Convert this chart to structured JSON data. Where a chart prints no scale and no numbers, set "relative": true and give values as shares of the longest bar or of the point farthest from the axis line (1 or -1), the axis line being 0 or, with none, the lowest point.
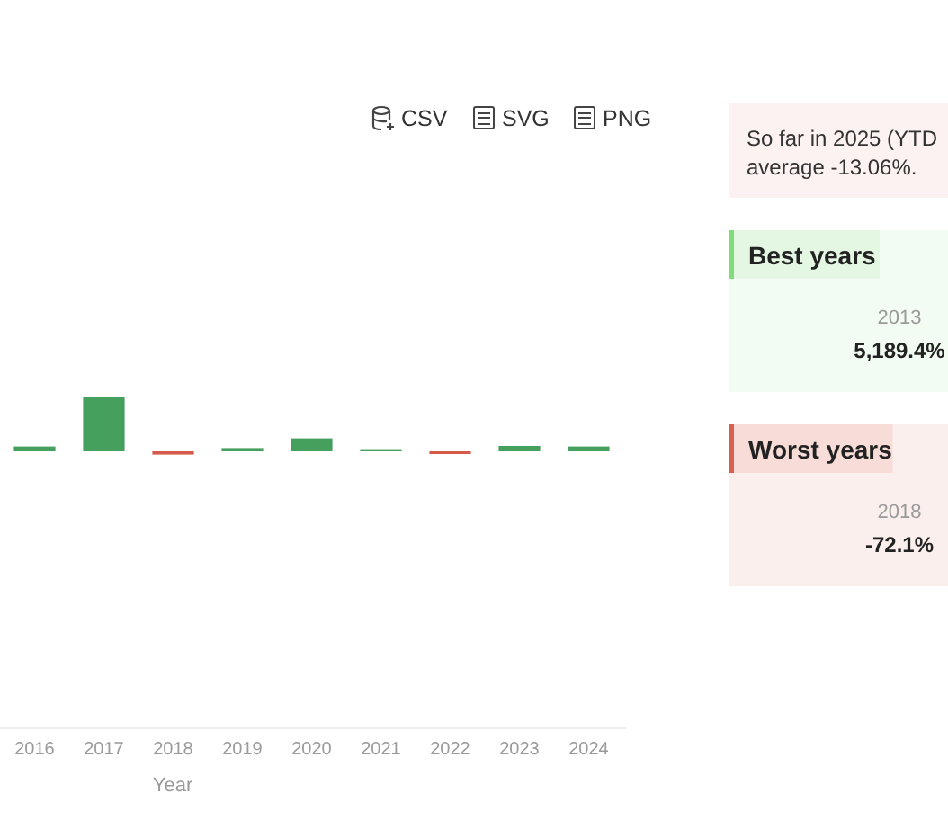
{
  "chart_data": [
    {
      "type": "bar",
      "categories": [
        "2016",
        "2017",
        "2018",
        "2019",
        "2020",
        "2021",
        "2022",
        "2023",
        "2024"
      ],
      "values": [
        0.09,
        1,
        -0.06,
        0.06,
        0.24,
        0.04,
        -0.05,
        0.1,
        0.09
      ],
      "colors": [
        "#45a05e",
        "#45a05e",
        "#d65a4c",
        "#45a05e",
        "#45a05e",
        "#45a05e",
        "#d65a4c",
        "#45a05e",
        "#45a05e"
      ],
      "relative": true,
      "xlabel": "Year",
      "annotations": [
        "CSV",
        "SVG",
        "PNG"
      ]
    },
    {
      "type": "other",
      "color": "#d9604f",
      "annotations": [
        "So far in 2025 (YTD",
        "average -13.06%."
      ]
    },
    {
      "type": "other",
      "color": "#7fdc7a",
      "title": "Best years",
      "annotations": [
        "2013",
        "5,189.4%"
      ]
    },
    {
      "type": "other",
      "color": "#d9604f",
      "title": "Worst years",
      "annotations": [
        "2018",
        "-72.1%"
      ]
    }
  ]
}
